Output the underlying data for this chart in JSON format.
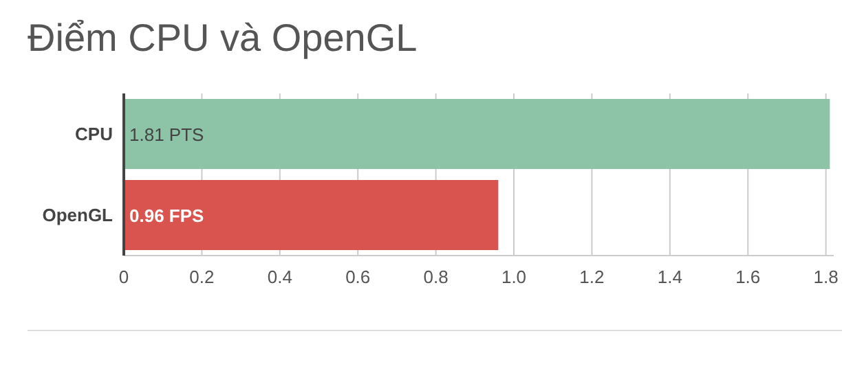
{
  "chart_data": {
    "type": "bar",
    "title": "Điểm CPU và OpenGL",
    "orientation": "horizontal",
    "categories": [
      "CPU",
      "OpenGL"
    ],
    "values": [
      1.81,
      0.96
    ],
    "colors": [
      "#8dc3a7",
      "#d9534f"
    ],
    "value_labels": [
      "1.81 PTS",
      "0.96 FPS"
    ],
    "xlim": [
      0,
      1.82
    ],
    "xticks": [
      0,
      0.2,
      0.4,
      0.6,
      0.8,
      {
        "value": 1.0,
        "label": "1.0"
      },
      1.2,
      1.4,
      1.6,
      1.8
    ],
    "grid": "x"
  }
}
